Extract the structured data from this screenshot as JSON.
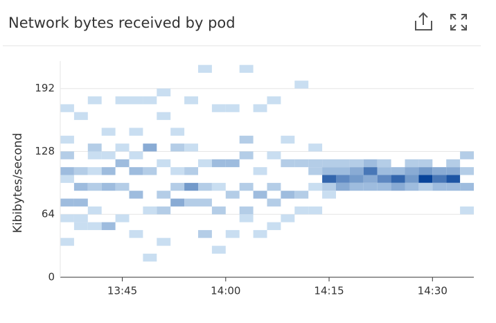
{
  "chart_data": {
    "type": "heatmap",
    "title": "Network bytes received by pod",
    "y_label": "Kibibytes/second",
    "xlim": [
      816,
      876
    ],
    "ylim": [
      0,
      220
    ],
    "xticks": [
      {
        "value": 825,
        "label": "13:45"
      },
      {
        "value": 840,
        "label": "14:00"
      },
      {
        "value": 855,
        "label": "14:15"
      },
      {
        "value": 870,
        "label": "14:30"
      }
    ],
    "yticks": [
      0,
      64,
      128,
      192
    ],
    "grid": true,
    "cell_width": 2,
    "cell_height": 8,
    "color_low": "#c9def1",
    "color_high": "#08449a",
    "value_max": 10,
    "cells": [
      [
        816,
        168,
        1
      ],
      [
        816,
        136,
        1
      ],
      [
        816,
        120,
        2
      ],
      [
        816,
        104,
        3
      ],
      [
        816,
        96,
        1
      ],
      [
        816,
        72,
        3
      ],
      [
        816,
        56,
        1
      ],
      [
        816,
        32,
        1
      ],
      [
        818,
        160,
        1
      ],
      [
        818,
        104,
        2
      ],
      [
        818,
        88,
        3
      ],
      [
        818,
        72,
        3
      ],
      [
        818,
        56,
        1
      ],
      [
        818,
        48,
        1
      ],
      [
        820,
        176,
        1
      ],
      [
        820,
        128,
        2
      ],
      [
        820,
        120,
        1
      ],
      [
        820,
        104,
        1
      ],
      [
        820,
        88,
        2
      ],
      [
        820,
        64,
        1
      ],
      [
        820,
        48,
        1
      ],
      [
        822,
        144,
        1
      ],
      [
        822,
        120,
        1
      ],
      [
        822,
        104,
        3
      ],
      [
        822,
        88,
        3
      ],
      [
        822,
        48,
        3
      ],
      [
        824,
        176,
        1
      ],
      [
        824,
        128,
        1
      ],
      [
        824,
        112,
        3
      ],
      [
        824,
        88,
        2
      ],
      [
        824,
        56,
        1
      ],
      [
        826,
        176,
        1
      ],
      [
        826,
        144,
        1
      ],
      [
        826,
        120,
        1
      ],
      [
        826,
        104,
        3
      ],
      [
        826,
        80,
        3
      ],
      [
        826,
        40,
        1
      ],
      [
        828,
        176,
        1
      ],
      [
        828,
        128,
        4
      ],
      [
        828,
        104,
        2
      ],
      [
        828,
        64,
        1
      ],
      [
        828,
        16,
        1
      ],
      [
        830,
        184,
        1
      ],
      [
        830,
        160,
        1
      ],
      [
        830,
        112,
        1
      ],
      [
        830,
        80,
        2
      ],
      [
        830,
        64,
        2
      ],
      [
        830,
        32,
        1
      ],
      [
        832,
        144,
        1
      ],
      [
        832,
        128,
        2
      ],
      [
        832,
        104,
        1
      ],
      [
        832,
        88,
        2
      ],
      [
        832,
        72,
        4
      ],
      [
        834,
        176,
        1
      ],
      [
        834,
        128,
        1
      ],
      [
        834,
        104,
        2
      ],
      [
        834,
        88,
        5
      ],
      [
        834,
        72,
        2
      ],
      [
        836,
        208,
        1
      ],
      [
        836,
        112,
        1
      ],
      [
        836,
        88,
        2
      ],
      [
        836,
        72,
        2
      ],
      [
        836,
        40,
        2
      ],
      [
        838,
        168,
        1
      ],
      [
        838,
        112,
        3
      ],
      [
        838,
        88,
        1
      ],
      [
        838,
        64,
        2
      ],
      [
        838,
        24,
        1
      ],
      [
        840,
        168,
        1
      ],
      [
        840,
        112,
        3
      ],
      [
        840,
        80,
        2
      ],
      [
        840,
        40,
        1
      ],
      [
        842,
        208,
        1
      ],
      [
        842,
        136,
        2
      ],
      [
        842,
        120,
        2
      ],
      [
        842,
        88,
        2
      ],
      [
        842,
        64,
        2
      ],
      [
        842,
        56,
        1
      ],
      [
        844,
        168,
        1
      ],
      [
        844,
        104,
        1
      ],
      [
        844,
        80,
        3
      ],
      [
        844,
        40,
        1
      ],
      [
        846,
        176,
        1
      ],
      [
        846,
        120,
        1
      ],
      [
        846,
        88,
        2
      ],
      [
        846,
        72,
        2
      ],
      [
        846,
        48,
        1
      ],
      [
        848,
        136,
        1
      ],
      [
        848,
        112,
        2
      ],
      [
        848,
        80,
        3
      ],
      [
        848,
        56,
        1
      ],
      [
        850,
        192,
        1
      ],
      [
        850,
        112,
        2
      ],
      [
        850,
        80,
        2
      ],
      [
        850,
        64,
        1
      ],
      [
        852,
        128,
        1
      ],
      [
        852,
        112,
        2
      ],
      [
        852,
        104,
        2
      ],
      [
        852,
        88,
        1
      ],
      [
        852,
        64,
        1
      ],
      [
        854,
        112,
        2
      ],
      [
        854,
        104,
        3
      ],
      [
        854,
        96,
        8
      ],
      [
        854,
        88,
        2
      ],
      [
        854,
        80,
        1
      ],
      [
        856,
        112,
        2
      ],
      [
        856,
        104,
        3
      ],
      [
        856,
        96,
        6
      ],
      [
        856,
        88,
        4
      ],
      [
        858,
        112,
        2
      ],
      [
        858,
        104,
        4
      ],
      [
        858,
        96,
        5
      ],
      [
        858,
        88,
        3
      ],
      [
        860,
        112,
        3
      ],
      [
        860,
        104,
        7
      ],
      [
        860,
        96,
        4
      ],
      [
        860,
        88,
        3
      ],
      [
        862,
        112,
        2
      ],
      [
        862,
        104,
        3
      ],
      [
        862,
        96,
        6
      ],
      [
        862,
        88,
        3
      ],
      [
        864,
        104,
        3
      ],
      [
        864,
        96,
        8
      ],
      [
        864,
        88,
        4
      ],
      [
        866,
        112,
        2
      ],
      [
        866,
        104,
        4
      ],
      [
        866,
        96,
        5
      ],
      [
        866,
        88,
        3
      ],
      [
        868,
        112,
        2
      ],
      [
        868,
        104,
        5
      ],
      [
        868,
        96,
        10
      ],
      [
        868,
        88,
        2
      ],
      [
        870,
        104,
        4
      ],
      [
        870,
        96,
        7
      ],
      [
        870,
        88,
        3
      ],
      [
        872,
        112,
        2
      ],
      [
        872,
        104,
        4
      ],
      [
        872,
        96,
        9
      ],
      [
        872,
        88,
        3
      ],
      [
        874,
        120,
        2
      ],
      [
        874,
        104,
        2
      ],
      [
        874,
        88,
        3
      ],
      [
        874,
        64,
        1
      ]
    ]
  }
}
